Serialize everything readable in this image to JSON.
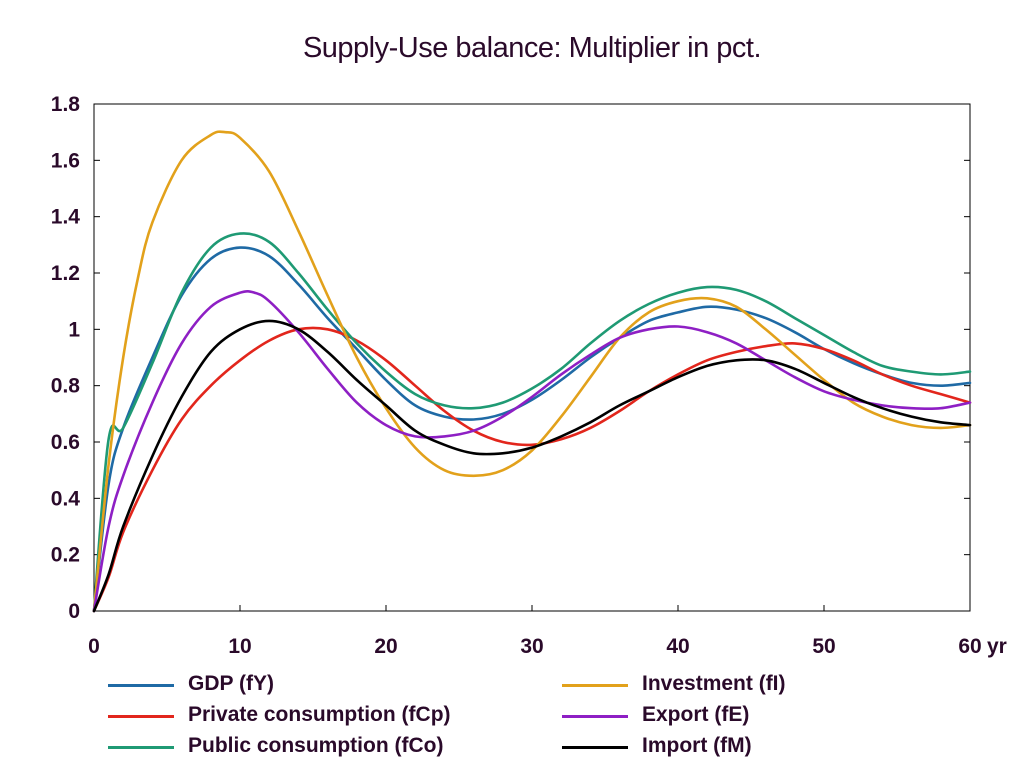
{
  "chart_data": {
    "type": "line",
    "title": "Supply-Use balance: Multiplier in pct.",
    "xlabel": "",
    "ylabel": "",
    "x_unit_label": "yr",
    "xlim": [
      0,
      60
    ],
    "ylim": [
      0,
      1.8
    ],
    "x_ticks": [
      0,
      10,
      20,
      30,
      40,
      50,
      60
    ],
    "x_tick_labels": [
      "0",
      "10",
      "20",
      "30",
      "40",
      "50",
      "60"
    ],
    "y_ticks": [
      0,
      0.2,
      0.4,
      0.6,
      0.8,
      1,
      1.2,
      1.4,
      1.6,
      1.8
    ],
    "y_tick_labels": [
      "0",
      "0.2",
      "0.4",
      "0.6",
      "0.8",
      "1",
      "1.2",
      "1.4",
      "1.6",
      "1.8"
    ],
    "grid": false,
    "legend_position": "bottom",
    "series": [
      {
        "name": "GDP (fY)",
        "color": "#1f6aa5",
        "x": [
          0,
          1,
          2,
          4,
          6,
          8,
          10,
          12,
          14,
          16,
          18,
          20,
          22,
          24,
          26,
          28,
          30,
          32,
          34,
          36,
          38,
          40,
          42,
          44,
          46,
          48,
          50,
          52,
          54,
          56,
          58,
          60
        ],
        "y": [
          0,
          0.45,
          0.65,
          0.9,
          1.12,
          1.25,
          1.29,
          1.26,
          1.16,
          1.04,
          0.93,
          0.82,
          0.73,
          0.69,
          0.68,
          0.7,
          0.75,
          0.82,
          0.9,
          0.97,
          1.03,
          1.06,
          1.08,
          1.07,
          1.04,
          0.99,
          0.93,
          0.88,
          0.84,
          0.81,
          0.8,
          0.81
        ]
      },
      {
        "name": "Private consumption (fCp)",
        "color": "#e2261c",
        "x": [
          0,
          1,
          2,
          4,
          6,
          8,
          10,
          12,
          14,
          16,
          18,
          20,
          22,
          24,
          26,
          28,
          30,
          32,
          34,
          36,
          38,
          40,
          42,
          44,
          46,
          48,
          50,
          52,
          54,
          56,
          58,
          60
        ],
        "y": [
          0,
          0.12,
          0.28,
          0.5,
          0.68,
          0.8,
          0.89,
          0.96,
          1.0,
          1.0,
          0.96,
          0.89,
          0.8,
          0.71,
          0.64,
          0.6,
          0.59,
          0.61,
          0.65,
          0.71,
          0.78,
          0.84,
          0.89,
          0.92,
          0.94,
          0.95,
          0.93,
          0.89,
          0.84,
          0.8,
          0.77,
          0.74
        ]
      },
      {
        "name": "Public consumption (fCo)",
        "color": "#1f9a74",
        "x": [
          0,
          1,
          2,
          4,
          6,
          8,
          10,
          12,
          14,
          16,
          18,
          20,
          22,
          24,
          26,
          28,
          30,
          32,
          34,
          36,
          38,
          40,
          42,
          44,
          46,
          48,
          50,
          52,
          54,
          56,
          58,
          60
        ],
        "y": [
          0,
          0.61,
          0.65,
          0.88,
          1.13,
          1.29,
          1.34,
          1.31,
          1.2,
          1.07,
          0.95,
          0.85,
          0.77,
          0.73,
          0.72,
          0.74,
          0.79,
          0.86,
          0.95,
          1.03,
          1.09,
          1.13,
          1.15,
          1.14,
          1.1,
          1.04,
          0.98,
          0.92,
          0.87,
          0.85,
          0.84,
          0.85
        ]
      },
      {
        "name": "Investment (fI)",
        "color": "#e2a11b",
        "x": [
          0,
          1,
          2,
          3,
          4,
          6,
          8,
          9,
          10,
          12,
          14,
          16,
          18,
          20,
          22,
          24,
          26,
          28,
          30,
          32,
          34,
          36,
          38,
          40,
          42,
          44,
          46,
          48,
          50,
          52,
          54,
          56,
          58,
          60
        ],
        "y": [
          0,
          0.52,
          0.9,
          1.18,
          1.38,
          1.6,
          1.69,
          1.7,
          1.68,
          1.56,
          1.35,
          1.12,
          0.9,
          0.72,
          0.58,
          0.5,
          0.48,
          0.5,
          0.57,
          0.69,
          0.83,
          0.97,
          1.06,
          1.1,
          1.11,
          1.08,
          1.0,
          0.91,
          0.82,
          0.74,
          0.69,
          0.66,
          0.65,
          0.66
        ]
      },
      {
        "name": "Export (fE)",
        "color": "#8e1fc4",
        "x": [
          0,
          1,
          2,
          4,
          6,
          8,
          10,
          11,
          12,
          14,
          16,
          18,
          20,
          22,
          24,
          26,
          28,
          30,
          32,
          34,
          36,
          38,
          40,
          42,
          44,
          46,
          48,
          50,
          52,
          54,
          56,
          58,
          60
        ],
        "y": [
          0,
          0.3,
          0.48,
          0.74,
          0.95,
          1.08,
          1.13,
          1.13,
          1.1,
          0.99,
          0.86,
          0.74,
          0.66,
          0.62,
          0.62,
          0.64,
          0.69,
          0.76,
          0.84,
          0.91,
          0.97,
          1.0,
          1.01,
          0.99,
          0.95,
          0.89,
          0.83,
          0.78,
          0.75,
          0.73,
          0.72,
          0.72,
          0.74
        ]
      },
      {
        "name": "Import (fM)",
        "color": "#000000",
        "x": [
          0,
          1,
          2,
          4,
          6,
          8,
          10,
          12,
          14,
          16,
          18,
          20,
          22,
          24,
          26,
          28,
          30,
          32,
          34,
          36,
          38,
          40,
          42,
          44,
          46,
          48,
          50,
          52,
          54,
          56,
          58,
          60
        ],
        "y": [
          0,
          0.13,
          0.3,
          0.55,
          0.76,
          0.92,
          1.0,
          1.03,
          1.0,
          0.92,
          0.82,
          0.73,
          0.64,
          0.59,
          0.56,
          0.56,
          0.58,
          0.62,
          0.67,
          0.73,
          0.78,
          0.83,
          0.87,
          0.89,
          0.89,
          0.86,
          0.81,
          0.76,
          0.72,
          0.69,
          0.67,
          0.66
        ]
      }
    ]
  }
}
